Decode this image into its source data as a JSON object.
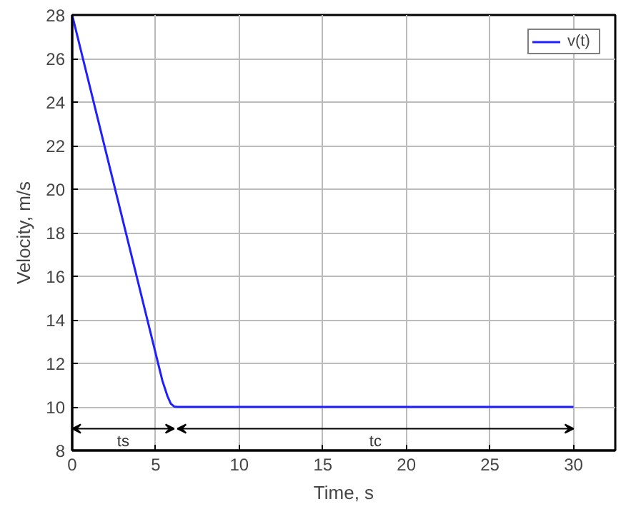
{
  "chart_data": {
    "type": "line",
    "xlabel": "Time, s",
    "ylabel": "Velocity, m/s",
    "x": [
      0,
      5.4,
      5.7,
      5.9,
      6.1,
      6.3,
      30
    ],
    "series": [
      {
        "name": "v(t)",
        "color": "#1f1fff",
        "values": [
          28,
          11.2,
          10.5,
          10.15,
          10.02,
          10,
          10
        ]
      }
    ],
    "xlim": [
      0,
      32.5
    ],
    "ylim": [
      8,
      28
    ],
    "xticks": [
      0,
      5,
      10,
      15,
      20,
      25,
      30
    ],
    "yticks": [
      8,
      10,
      12,
      14,
      16,
      18,
      20,
      22,
      24,
      26,
      28
    ],
    "annotations": [
      "ts",
      "tc"
    ],
    "grid": true,
    "legend": "top right",
    "marker": "none",
    "line_style": "solid"
  }
}
